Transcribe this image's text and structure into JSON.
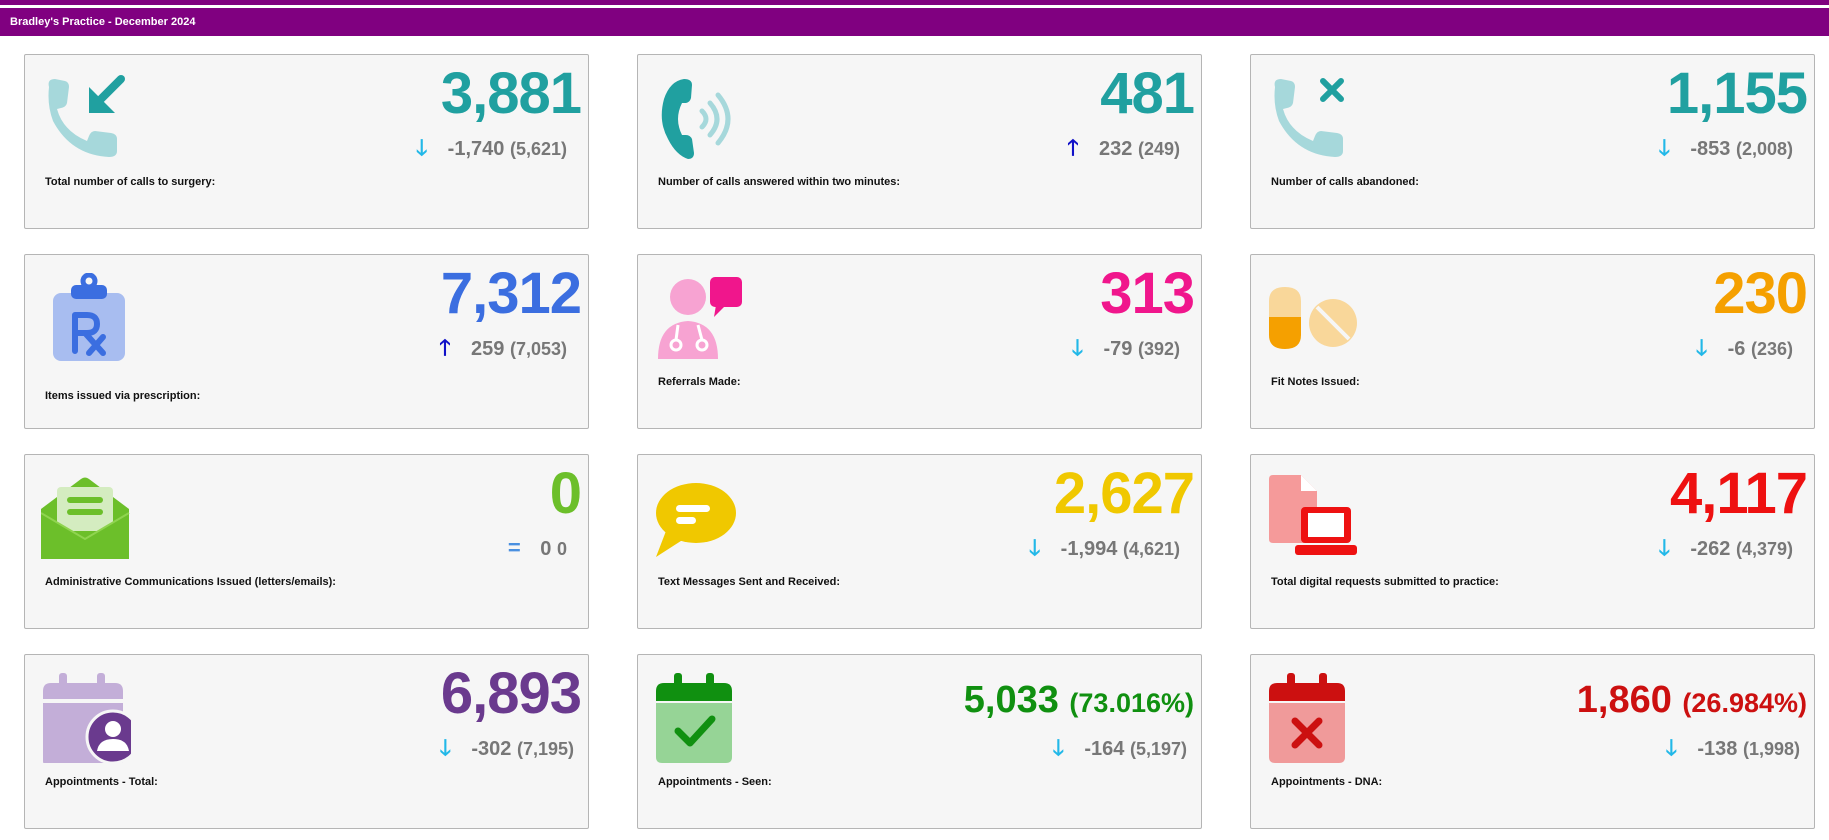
{
  "header": {
    "title": "Bradley's Practice - December 2024"
  },
  "cards": [
    {
      "label": "Total number of calls to surgery:",
      "value": "3,881",
      "delta": "-1,740",
      "previous": "(5,621)",
      "trend": "down",
      "color": "#20a0a0",
      "icon": "phone-incoming-icon"
    },
    {
      "label": "Number of calls answered within two minutes:",
      "value": "481",
      "delta": "232",
      "previous": "(249)",
      "trend": "up",
      "color": "#20a0a0",
      "icon": "phone-ringing-icon"
    },
    {
      "label": "Number of calls abandoned:",
      "value": "1,155",
      "delta": "-853",
      "previous": "(2,008)",
      "trend": "down",
      "color": "#20a0a0",
      "icon": "phone-missed-icon"
    },
    {
      "label": "Items issued via prescription:",
      "value": "7,312",
      "delta": "259",
      "previous": "(7,053)",
      "trend": "up",
      "color": "#3b6ee0",
      "icon": "prescription-clipboard-icon"
    },
    {
      "label": "Referrals Made:",
      "value": "313",
      "delta": "-79",
      "previous": "(392)",
      "trend": "down",
      "color": "#f0168c",
      "icon": "doctor-chat-icon"
    },
    {
      "label": "Fit Notes Issued:",
      "value": "230",
      "delta": "-6",
      "previous": "(236)",
      "trend": "down",
      "color": "#f5a000",
      "icon": "pills-icon"
    },
    {
      "label": "Administrative Communications Issued (letters/emails):",
      "value": "0",
      "delta": "0",
      "previous": "0",
      "trend": "equal",
      "color": "#6cbf2a",
      "icon": "open-envelope-icon"
    },
    {
      "label": "Text Messages Sent and Received:",
      "value": "2,627",
      "delta": "-1,994",
      "previous": "(4,621)",
      "trend": "down",
      "color": "#f0c800",
      "icon": "chat-bubble-icon"
    },
    {
      "label": "Total digital requests submitted to practice:",
      "value": "4,117",
      "delta": "-262",
      "previous": "(4,379)",
      "trend": "down",
      "color": "#ee1111",
      "icon": "document-laptop-icon"
    },
    {
      "label": "Appointments - Total:",
      "value": "6,893",
      "percent": "",
      "delta": "-302",
      "previous": "(7,195)",
      "trend": "down",
      "color": "#6a3a8e",
      "icon": "calendar-person-icon"
    },
    {
      "label": "Appointments - Seen:",
      "value": "5,033",
      "percent": "(73.016%)",
      "delta": "-164",
      "previous": "(5,197)",
      "trend": "down",
      "color": "#109010",
      "icon": "calendar-check-icon"
    },
    {
      "label": "Appointments - DNA:",
      "value": "1,860",
      "percent": "(26.984%)",
      "delta": "-138",
      "previous": "(1,998)",
      "trend": "down",
      "color": "#cc1010",
      "icon": "calendar-cross-icon"
    }
  ],
  "trend_colors": {
    "down": "#22b8e8",
    "up": "#1010c8",
    "equal": "#4a90e0"
  },
  "trend_glyphs": {
    "down": "🡓",
    "up": "🡑",
    "equal": "="
  }
}
